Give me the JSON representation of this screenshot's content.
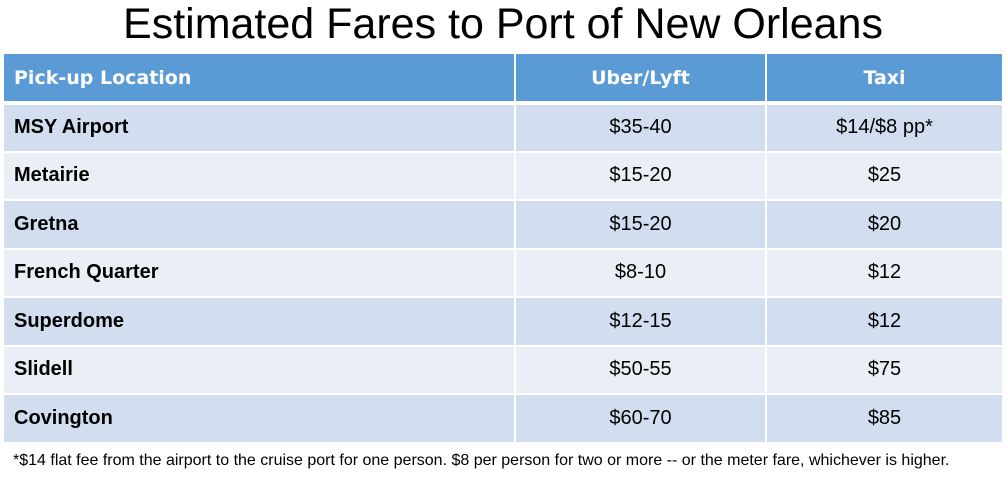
{
  "title": "Estimated Fares to Port of New Orleans",
  "table": {
    "headers": [
      "Pick-up Location",
      "Uber/Lyft",
      "Taxi"
    ],
    "rows": [
      {
        "location": "MSY Airport",
        "uber_lyft": "$35-40",
        "taxi": "$14/$8 pp*"
      },
      {
        "location": "Metairie",
        "uber_lyft": "$15-20",
        "taxi": "$25"
      },
      {
        "location": "Gretna",
        "uber_lyft": "$15-20",
        "taxi": "$20"
      },
      {
        "location": "French Quarter",
        "uber_lyft": "$8-10",
        "taxi": "$12"
      },
      {
        "location": "Superdome",
        "uber_lyft": "$12-15",
        "taxi": "$12"
      },
      {
        "location": "Slidell",
        "uber_lyft": "$50-55",
        "taxi": "$75"
      },
      {
        "location": "Covington",
        "uber_lyft": "$60-70",
        "taxi": "$85"
      }
    ]
  },
  "footnote": "*$14 flat fee from the airport to the cruise port for one person. $8 per person for two or more -- or the meter fare, whichever is higher.",
  "colors": {
    "header_bg": "#5b9bd5",
    "row_odd_bg": "#d2deef",
    "row_even_bg": "#eaeff7"
  }
}
